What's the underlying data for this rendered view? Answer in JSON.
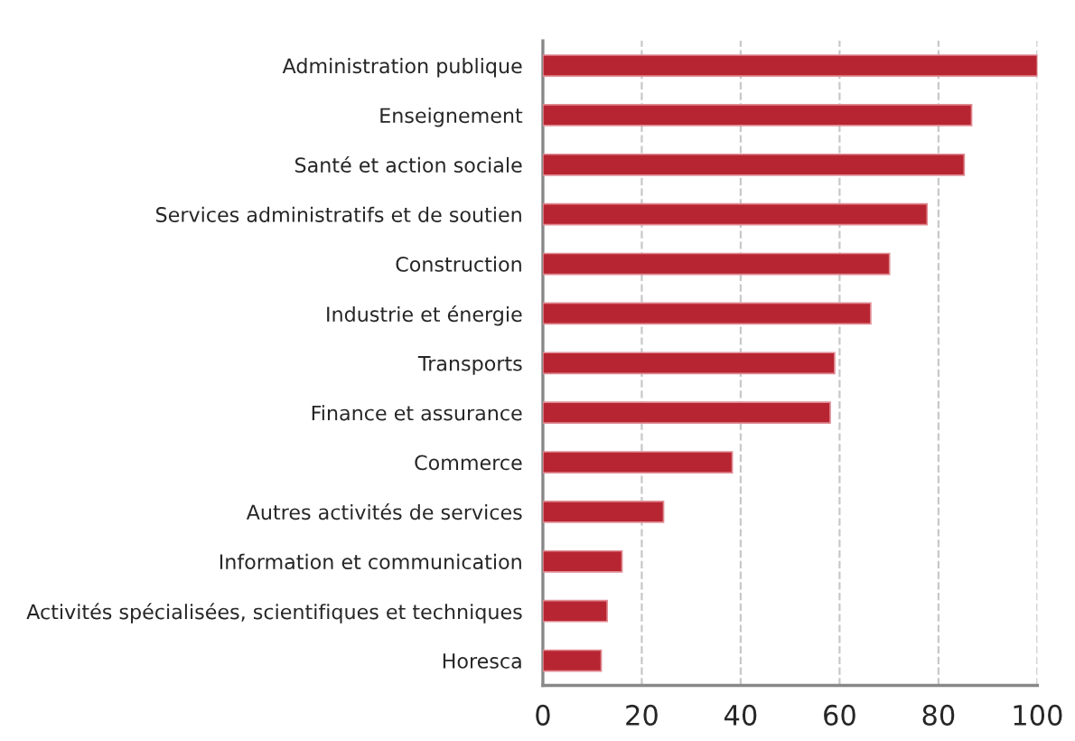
{
  "chart_data": {
    "type": "bar",
    "orientation": "horizontal",
    "categories": [
      "Administration publique",
      "Enseignement",
      "Santé et action sociale",
      "Services administratifs et de soutien",
      "Construction",
      "Industrie et énergie",
      "Transports",
      "Finance et assurance",
      "Commerce",
      "Autres activités de services",
      "Information et communication",
      "Activités spécialisées, scientifiques et techniques",
      "Horesca"
    ],
    "values": [
      100,
      86.7,
      85.2,
      77.7,
      70.1,
      66.3,
      59.0,
      58.1,
      38.3,
      24.4,
      16.0,
      13.0,
      11.8
    ],
    "color": "#b82532",
    "xlim": [
      0,
      100
    ],
    "xticks": [
      0,
      20,
      40,
      60,
      80,
      100
    ],
    "grid": "x"
  }
}
